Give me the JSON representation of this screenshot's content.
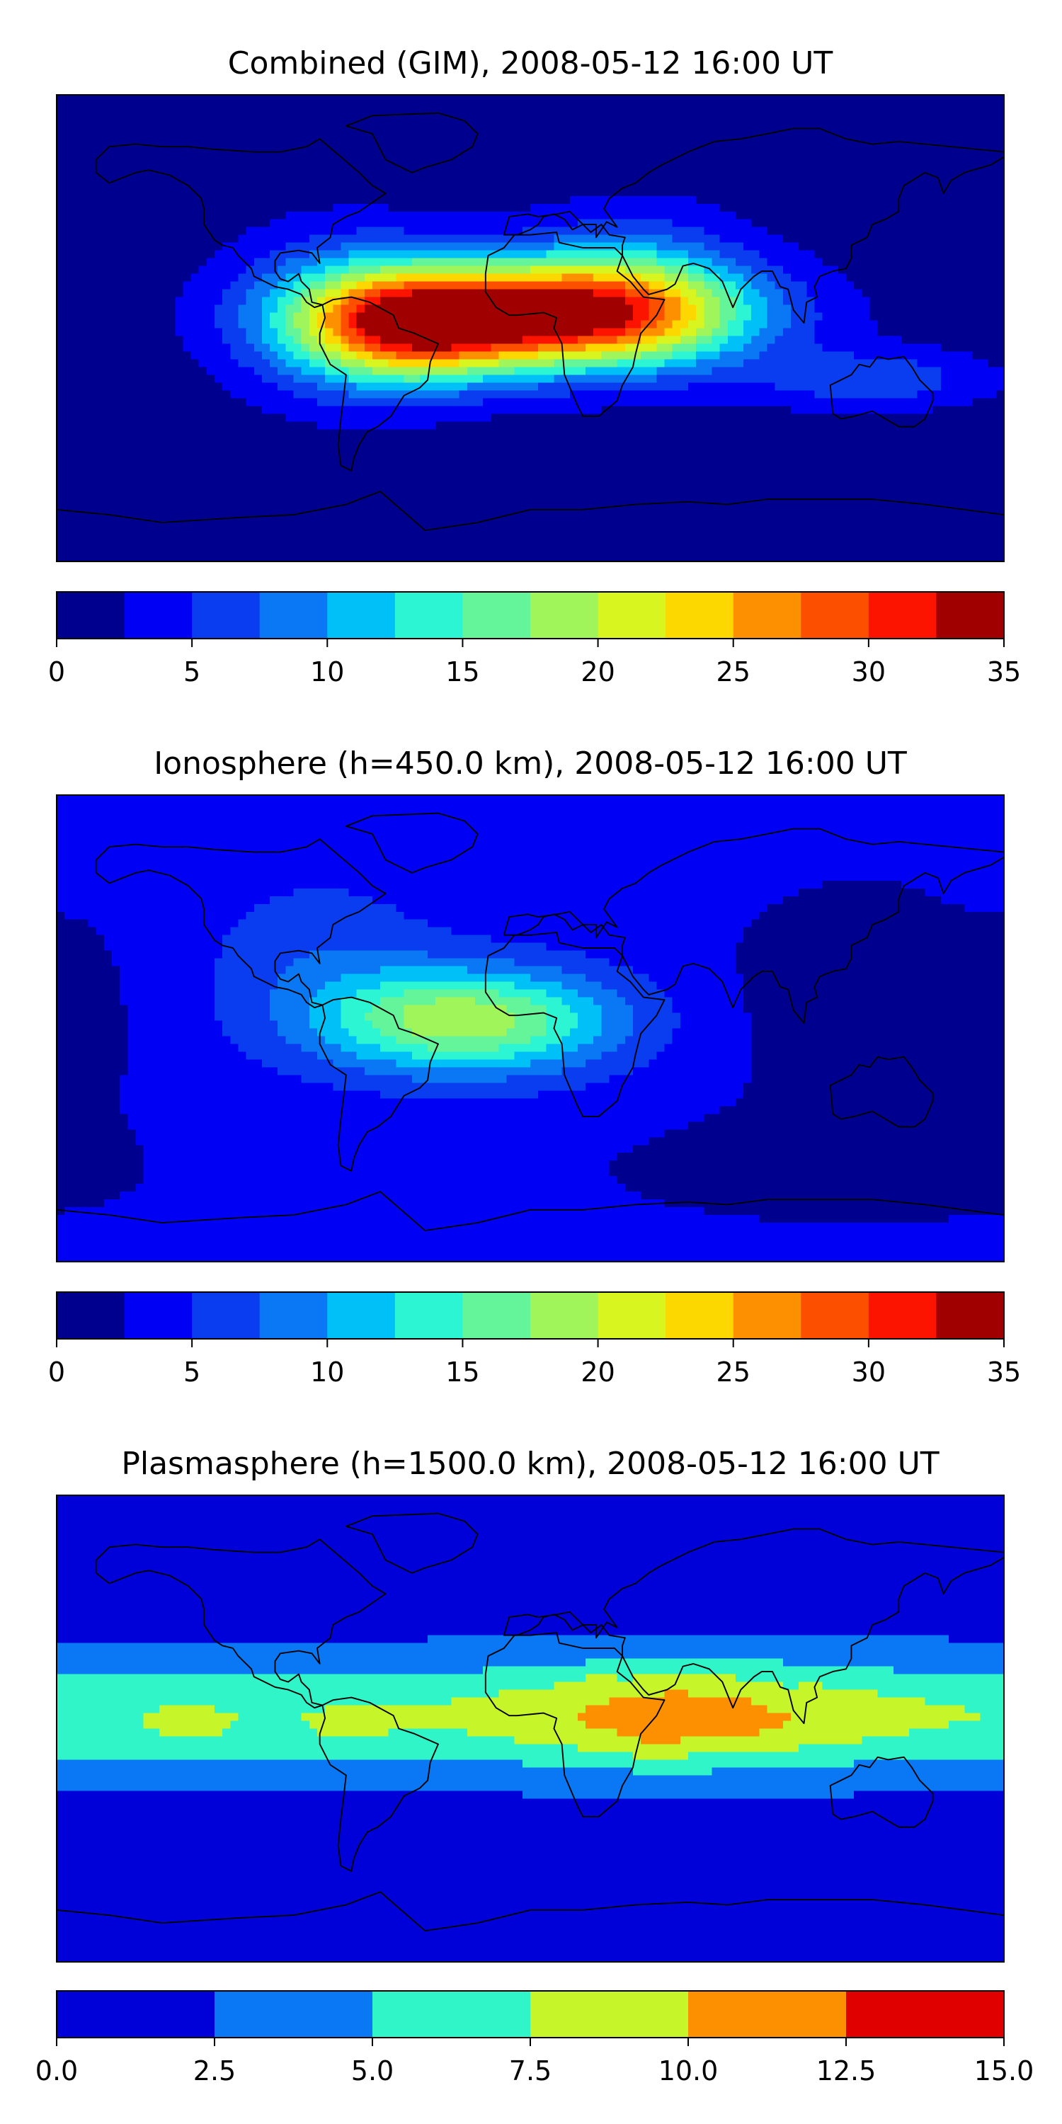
{
  "chart_data": [
    {
      "type": "heatmap",
      "title": "Combined (GIM), 2008-05-12 16:00 UT",
      "colorbar": {
        "levels": [
          0,
          2.5,
          5,
          7.5,
          10,
          12.5,
          15,
          17.5,
          20,
          22.5,
          25,
          27.5,
          30,
          32.5,
          35
        ],
        "ticks": [
          0,
          5,
          10,
          15,
          20,
          25,
          30,
          35
        ],
        "tick_labels": [
          "0",
          "5",
          "10",
          "15",
          "20",
          "25",
          "30",
          "35"
        ],
        "colors": [
          "#00008f",
          "#0000f5",
          "#0a3cf0",
          "#0a78f5",
          "#00c0f8",
          "#2cf5d4",
          "#64f59a",
          "#a0f55a",
          "#d8f520",
          "#fcd800",
          "#fc9000",
          "#fc5000",
          "#fc1400",
          "#a00000"
        ]
      },
      "field": {
        "background_level": 1,
        "peaks": [
          {
            "lon": 5,
            "lat": 5,
            "value": 31,
            "sx": 50,
            "sy": 14
          },
          {
            "lon": -45,
            "lat": 0,
            "value": 16,
            "sx": 28,
            "sy": 15
          },
          {
            "lon": -70,
            "lat": 5,
            "value": 8,
            "sx": 30,
            "sy": 22
          },
          {
            "lon": 40,
            "lat": 15,
            "value": 8,
            "sx": 30,
            "sy": 20
          },
          {
            "lon": 130,
            "lat": -20,
            "value": 6,
            "sx": 30,
            "sy": 8
          }
        ],
        "sub_peaks": [
          {
            "lon": 150,
            "lat": -60,
            "value": 3,
            "sx": 70,
            "sy": 10
          }
        ]
      }
    },
    {
      "type": "heatmap",
      "title": "Ionosphere  (h=450.0 km), 2008-05-12 16:00 UT",
      "colorbar": {
        "levels": [
          0,
          2.5,
          5,
          7.5,
          10,
          12.5,
          15,
          17.5,
          20,
          22.5,
          25,
          27.5,
          30,
          32.5,
          35
        ],
        "ticks": [
          0,
          5,
          10,
          15,
          20,
          25,
          30,
          35
        ],
        "tick_labels": [
          "0",
          "5",
          "10",
          "15",
          "20",
          "25",
          "30",
          "35"
        ],
        "colors": [
          "#00008f",
          "#0000f5",
          "#0a3cf0",
          "#0a78f5",
          "#00c0f8",
          "#2cf5d4",
          "#64f59a",
          "#a0f55a",
          "#d8f520",
          "#fcd800",
          "#fc9000",
          "#fc5000",
          "#fc1400",
          "#a00000"
        ]
      },
      "field": {
        "background_level": 3.5,
        "peaks": [
          {
            "lon": -25,
            "lat": 3,
            "value": 16,
            "sx": 40,
            "sy": 14
          },
          {
            "lon": -80,
            "lat": 30,
            "value": 3,
            "sx": 30,
            "sy": 20
          }
        ],
        "sub_peaks": [
          {
            "lon": 125,
            "lat": 10,
            "value": 2.5,
            "sx": 40,
            "sy": 35
          },
          {
            "lon": 120,
            "lat": -55,
            "value": 2.2,
            "sx": 70,
            "sy": 15
          },
          {
            "lon": -170,
            "lat": 0,
            "value": 1.5,
            "sx": 15,
            "sy": 30
          }
        ]
      }
    },
    {
      "type": "heatmap",
      "title": "Plasmasphere (h=1500.0 km), 2008-05-12 16:00 UT",
      "colorbar": {
        "levels": [
          0,
          2.5,
          5,
          7.5,
          10,
          12.5,
          15
        ],
        "ticks": [
          0,
          2.5,
          5,
          7.5,
          10,
          12.5,
          15
        ],
        "tick_labels": [
          "0.0",
          "2.5",
          "5.0",
          "7.5",
          "10.0",
          "12.5",
          "15.0"
        ],
        "colors": [
          "#0000d8",
          "#0a78f5",
          "#30f5c8",
          "#c6f52a",
          "#fc9000",
          "#e00000"
        ]
      },
      "field": {
        "background_level": 1.5,
        "band": {
          "lat_center": 5,
          "lat_sigma": 22,
          "value": 5.8
        },
        "peaks": [
          {
            "lon": 60,
            "lat": 5,
            "value": 4.2,
            "sx": 45,
            "sy": 14
          },
          {
            "lon": 48,
            "lat": -5,
            "value": 1.2,
            "sx": 6,
            "sy": 8
          },
          {
            "lon": 25,
            "lat": 20,
            "value": 0.9,
            "sx": 5,
            "sy": 3
          },
          {
            "lon": -130,
            "lat": 0,
            "value": 1.5,
            "sx": 10,
            "sy": 5
          },
          {
            "lon": -68,
            "lat": 0,
            "value": 1.4,
            "sx": 10,
            "sy": 5
          }
        ],
        "sub_peaks": [
          {
            "lon": 95,
            "lat": 12,
            "value": 1.2,
            "sx": 6,
            "sy": 4
          }
        ]
      }
    }
  ]
}
